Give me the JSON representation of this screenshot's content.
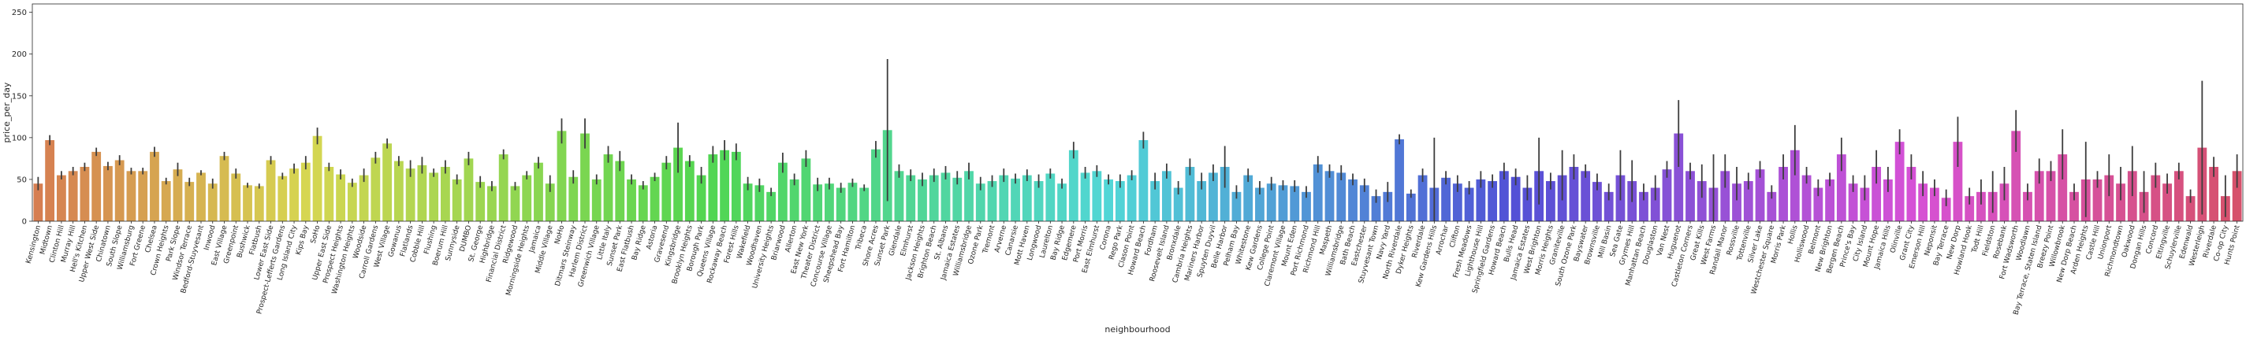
{
  "chart_data": {
    "type": "bar",
    "xlabel": "neighbourhood",
    "ylabel": "price_per_day",
    "ylim": [
      0,
      260
    ],
    "yticks": [
      0,
      50,
      100,
      150,
      200,
      250
    ],
    "palette": "husl",
    "error_bars": true,
    "categories": [
      "Kensington",
      "Midtown",
      "Clinton Hill",
      "Murray Hill",
      "Hell's Kitchen",
      "Upper West Side",
      "Chinatown",
      "South Slope",
      "Williamsburg",
      "Fort Greene",
      "Chelsea",
      "Crown Heights",
      "Park Slope",
      "Windsor Terrace",
      "Bedford-Stuyvesant",
      "Inwood",
      "East Village",
      "Greenpoint",
      "Bushwick",
      "Flatbush",
      "Lower East Side",
      "Prospect-Lefferts Gardens",
      "Long Island City",
      "Kips Bay",
      "SoHo",
      "Upper East Side",
      "Prospect Heights",
      "Washington Heights",
      "Woodside",
      "Carroll Gardens",
      "West Village",
      "Gowanus",
      "Flatlands",
      "Cobble Hill",
      "Flushing",
      "Boerum Hill",
      "Sunnyside",
      "DUMBO",
      "St. George",
      "Highbridge",
      "Financial District",
      "Ridgewood",
      "Morningside Heights",
      "Jamaica",
      "Middle Village",
      "NoHo",
      "Ditmars Steinway",
      "Harlem District",
      "Greenwich Village",
      "Little Italy",
      "Sunset Park",
      "East Flatbush",
      "Bay Ridge",
      "Astoria",
      "Gravesend",
      "Kingsbridge",
      "Brooklyn Heights",
      "Borough Park",
      "Queens Village",
      "Rockaway Beach",
      "Forest Hills",
      "Wakefield",
      "Woodhaven",
      "University Heights",
      "Briarwood",
      "Allerton",
      "East New York",
      "Theater District",
      "Concourse Village",
      "Sheepshead Bay",
      "Fort Hamilton",
      "Tribeca",
      "Shore Acres",
      "Sunset Park",
      "Glendale",
      "Elmhurst",
      "Jackson Heights",
      "Brighton Beach",
      "St. Albans",
      "Jamaica Estates",
      "Williamsbridge",
      "Ozone Park",
      "Tremont",
      "Arverne",
      "Canarsie",
      "Mott Haven",
      "Longwood",
      "Laurelton",
      "Bay Ridge",
      "Edgemere",
      "Port Morris",
      "East Elmhurst",
      "Corona",
      "Rego Park",
      "Clason Point",
      "Howard Beach",
      "Fordham",
      "Roosevelt Island",
      "Bronxdale",
      "Cambria Heights",
      "Mariners Harbor",
      "Spuyten Duyvil",
      "Belle Harbor",
      "Pelham Bay",
      "Whitestone",
      "Kew Gardens",
      "College Point",
      "Claremont Village",
      "Mount Eden",
      "Port Richmond",
      "Richmond Hill",
      "Maspeth",
      "Williamsbridge",
      "Bath Beach",
      "Eastchester",
      "Stuyvesant Town",
      "Navy Yard",
      "North Riverdale",
      "Dyker Heights",
      "Riverdale",
      "Kew Gardens Hills",
      "Arrochar",
      "Clifton",
      "Fresh Meadows",
      "Lighthouse Hill",
      "Springfield Gardens",
      "Howard Beach",
      "Bulls Head",
      "Jamaica Estates",
      "West Brighton",
      "Morris Heights",
      "Graniteville",
      "South Ozone Park",
      "Bayswater",
      "Brownsville",
      "Mill Basin",
      "Sea Gate",
      "Grymes Hill",
      "Manhattan Beach",
      "Douglaston",
      "Van Nest",
      "Huguenot",
      "Castleton Corners",
      "Great Kills",
      "West Farms",
      "Randall Manor",
      "Rossville",
      "Tottenville",
      "Silver Lake",
      "Westchester Square",
      "Morris Park",
      "Hollis",
      "Holliswood",
      "Belmont",
      "New Brighton",
      "Bergen Beach",
      "Prince's Bay",
      "City Island",
      "Mount Hope",
      "Jamaica Hills",
      "Olinville",
      "Grant City",
      "Emerson Hill",
      "Neponsit",
      "Bay Terrace",
      "New Dorp",
      "Howland Hook",
      "Todt Hill",
      "Fieldston",
      "Rosebank",
      "Fort Wadsworth",
      "Woodlawn",
      "Bay Terrace, Staten Island",
      "Breezy Point",
      "Willowbrook",
      "New Dorp Beach",
      "Arden Heights",
      "Castle Hill",
      "Unionport",
      "Richmondtown",
      "Oakwood",
      "Dongan Hills",
      "Concord",
      "Eltingville",
      "Schuylerville",
      "Edenwald",
      "Westerleigh",
      "Riverdale",
      "Co-op City",
      "Hunts Point"
    ],
    "values": [
      45,
      97,
      55,
      60,
      65,
      83,
      66,
      73,
      60,
      60,
      83,
      48,
      62,
      47,
      58,
      45,
      78,
      57,
      43,
      42,
      73,
      54,
      63,
      70,
      102,
      65,
      56,
      46,
      55,
      76,
      93,
      72,
      63,
      67,
      58,
      65,
      50,
      75,
      47,
      42,
      80,
      42,
      55,
      70,
      45,
      108,
      53,
      105,
      50,
      80,
      72,
      50,
      43,
      53,
      70,
      88,
      72,
      55,
      80,
      85,
      83,
      45,
      43,
      35,
      70,
      50,
      75,
      44,
      45,
      40,
      46,
      40,
      86,
      109,
      60,
      55,
      50,
      55,
      58,
      52,
      60,
      45,
      48,
      55,
      51,
      55,
      48,
      57,
      45,
      85,
      58,
      60,
      50,
      48,
      55,
      97,
      48,
      60,
      40,
      65,
      48,
      58,
      65,
      35,
      55,
      40,
      45,
      43,
      42,
      35,
      68,
      60,
      58,
      50,
      43,
      30,
      35,
      98,
      33,
      55,
      40,
      52,
      45,
      40,
      50,
      48,
      60,
      53,
      40,
      60,
      48,
      55,
      65,
      60,
      47,
      35,
      55,
      48,
      35,
      40,
      62,
      105,
      60,
      48,
      40,
      60,
      45,
      48,
      62,
      35,
      65,
      85,
      55,
      40,
      50,
      80,
      45,
      40,
      65,
      50,
      95,
      65,
      45,
      40,
      28,
      95,
      30,
      35,
      35,
      45,
      108,
      35,
      60,
      60,
      80,
      35,
      50,
      50,
      55,
      45,
      60,
      35,
      55,
      45,
      60,
      30,
      88,
      65,
      30,
      60
    ],
    "errors": [
      8,
      6,
      5,
      5,
      5,
      5,
      5,
      6,
      4,
      4,
      6,
      4,
      8,
      5,
      3,
      6,
      5,
      6,
      3,
      3,
      5,
      4,
      6,
      8,
      10,
      5,
      6,
      5,
      8,
      7,
      6,
      6,
      10,
      10,
      5,
      8,
      6,
      8,
      7,
      6,
      6,
      5,
      5,
      7,
      10,
      15,
      8,
      18,
      6,
      10,
      12,
      6,
      5,
      5,
      8,
      30,
      7,
      10,
      10,
      12,
      10,
      8,
      8,
      5,
      12,
      7,
      10,
      8,
      7,
      6,
      5,
      4,
      10,
      85,
      8,
      7,
      8,
      8,
      8,
      8,
      10,
      8,
      7,
      8,
      6,
      7,
      8,
      6,
      6,
      10,
      7,
      7,
      6,
      8,
      6,
      10,
      10,
      9,
      8,
      10,
      10,
      10,
      25,
      8,
      8,
      8,
      8,
      6,
      7,
      7,
      10,
      8,
      9,
      7,
      8,
      8,
      12,
      6,
      5,
      8,
      60,
      8,
      10,
      8,
      10,
      8,
      10,
      10,
      15,
      40,
      10,
      30,
      15,
      8,
      10,
      10,
      30,
      25,
      10,
      15,
      10,
      40,
      10,
      20,
      40,
      20,
      20,
      10,
      10,
      8,
      15,
      30,
      10,
      10,
      8,
      20,
      10,
      15,
      20,
      15,
      15,
      15,
      15,
      10,
      10,
      30,
      10,
      15,
      25,
      20,
      25,
      10,
      15,
      12,
      30,
      10,
      45,
      10,
      25,
      20,
      30,
      25,
      15,
      12,
      10,
      8,
      80,
      12,
      25,
      20
    ]
  }
}
